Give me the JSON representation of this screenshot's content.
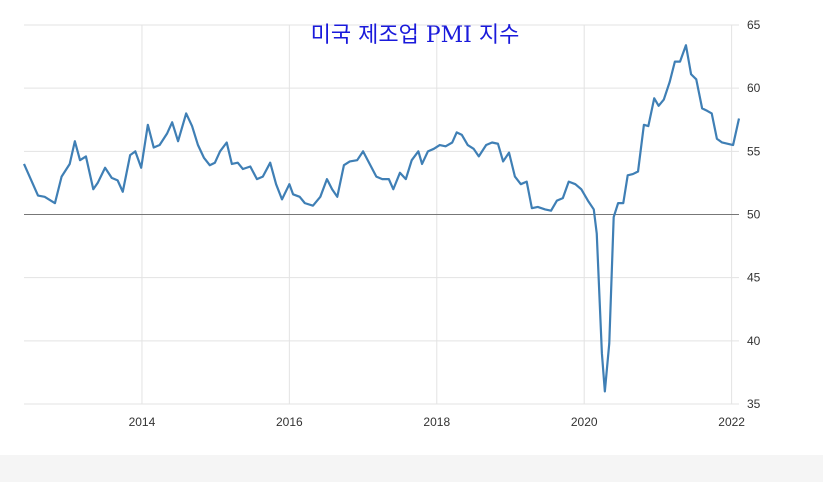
{
  "chart_data": {
    "type": "line",
    "title": "미국 제조업 PMI 지수",
    "x": [
      2012.4,
      2012.59,
      2012.68,
      2012.82,
      2012.91,
      2013.02,
      2013.09,
      2013.16,
      2013.24,
      2013.34,
      2013.4,
      2013.5,
      2013.59,
      2013.67,
      2013.74,
      2013.84,
      2013.91,
      2013.99,
      2014.08,
      2014.16,
      2014.24,
      2014.34,
      2014.41,
      2014.49,
      2014.6,
      2014.68,
      2014.76,
      2014.84,
      2014.92,
      2014.99,
      2015.06,
      2015.15,
      2015.22,
      2015.3,
      2015.37,
      2015.47,
      2015.56,
      2015.64,
      2015.74,
      2015.82,
      2015.9,
      2016.0,
      2016.05,
      2016.14,
      2016.21,
      2016.32,
      2016.42,
      2016.51,
      2016.58,
      2016.65,
      2016.74,
      2016.82,
      2016.92,
      2017.0,
      2017.09,
      2017.18,
      2017.26,
      2017.35,
      2017.41,
      2017.5,
      2017.58,
      2017.66,
      2017.75,
      2017.8,
      2017.88,
      2017.96,
      2018.04,
      2018.12,
      2018.21,
      2018.27,
      2018.34,
      2018.42,
      2018.5,
      2018.57,
      2018.67,
      2018.75,
      2018.83,
      2018.9,
      2018.98,
      2019.06,
      2019.14,
      2019.22,
      2019.29,
      2019.37,
      2019.47,
      2019.55,
      2019.63,
      2019.71,
      2019.79,
      2019.88,
      2019.96,
      2020.05,
      2020.13,
      2020.17,
      2020.24,
      2020.28,
      2020.34,
      2020.4,
      2020.46,
      2020.53,
      2020.59,
      2020.66,
      2020.73,
      2020.81,
      2020.87,
      2020.95,
      2021.01,
      2021.08,
      2021.16,
      2021.23,
      2021.3,
      2021.38,
      2021.45,
      2021.52,
      2021.6,
      2021.67,
      2021.73,
      2021.8,
      2021.87,
      2022.02,
      2022.1
    ],
    "series": [
      {
        "color": "#3f7fb5",
        "values": [
          54.0,
          51.5,
          51.4,
          50.9,
          53.0,
          54.0,
          55.8,
          54.3,
          54.6,
          52.0,
          52.5,
          53.7,
          52.9,
          52.7,
          51.8,
          54.7,
          55.0,
          53.7,
          57.1,
          55.3,
          55.5,
          56.4,
          57.3,
          55.8,
          58.0,
          57.0,
          55.5,
          54.5,
          53.9,
          54.1,
          55.0,
          55.7,
          54.0,
          54.1,
          53.6,
          53.8,
          52.8,
          53.0,
          54.1,
          52.4,
          51.2,
          52.4,
          51.6,
          51.4,
          50.9,
          50.7,
          51.4,
          52.8,
          52.0,
          51.4,
          53.9,
          54.2,
          54.3,
          55.0,
          54.0,
          53.0,
          52.8,
          52.8,
          52.0,
          53.3,
          52.8,
          54.3,
          55.0,
          54.0,
          55.0,
          55.2,
          55.5,
          55.4,
          55.7,
          56.5,
          56.3,
          55.5,
          55.2,
          54.6,
          55.5,
          55.7,
          55.6,
          54.2,
          54.9,
          53.0,
          52.4,
          52.6,
          50.5,
          50.6,
          50.4,
          50.3,
          51.1,
          51.3,
          52.6,
          52.4,
          52.0,
          51.1,
          50.4,
          48.5,
          39.0,
          36.0,
          39.8,
          49.8,
          50.9,
          50.9,
          53.1,
          53.2,
          53.4,
          57.1,
          57.0,
          59.2,
          58.6,
          59.1,
          60.5,
          62.1,
          62.1,
          63.4,
          61.1,
          60.7,
          58.4,
          58.2,
          58.0,
          56.0,
          55.7,
          55.5,
          57.6
        ]
      }
    ],
    "xlim": [
      2012.4,
      2022.1
    ],
    "xticks": [
      2014,
      2016,
      2018,
      2020,
      2022
    ],
    "ylim": [
      35,
      65
    ],
    "yticks": [
      35,
      40,
      45,
      50,
      55,
      60,
      65
    ],
    "baseline": 50,
    "grid": true
  }
}
